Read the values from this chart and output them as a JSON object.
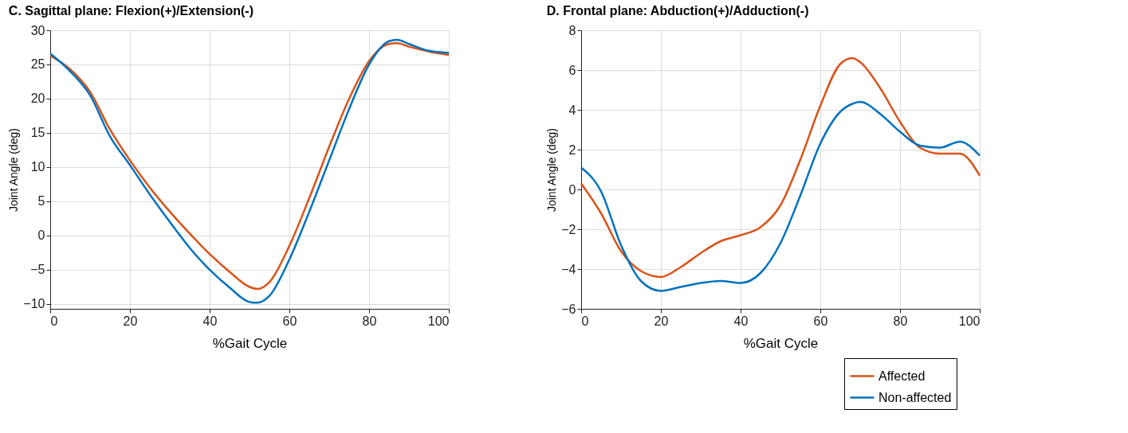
{
  "chart_data": [
    {
      "type": "line",
      "title": "C. Sagittal plane: Flexion(+)/Extension(-)",
      "xlabel": "%Gait Cycle",
      "ylabel": "Joint Angle (deg)",
      "xlim": [
        0,
        100
      ],
      "xticks": [
        0,
        20,
        40,
        60,
        80,
        100
      ],
      "ylim": [
        -10.7,
        30
      ],
      "yticks": [
        -10,
        -5,
        0,
        5,
        10,
        15,
        20,
        25,
        30
      ],
      "grid": true,
      "marker": "none",
      "line_style": "solid",
      "x": [
        0,
        5,
        10,
        15,
        20,
        25,
        30,
        35,
        40,
        45,
        50,
        52,
        55,
        60,
        65,
        70,
        75,
        80,
        85,
        87,
        90,
        95,
        100
      ],
      "series": [
        {
          "color": "#d95319",
          "values": [
            26.3,
            24.3,
            21,
            15.5,
            11,
            7,
            3.5,
            0.3,
            -2.7,
            -5.3,
            -7.5,
            -7.8,
            -6.8,
            -1.5,
            5.5,
            13,
            20,
            25.5,
            28,
            28.1,
            27.6,
            26.9,
            26.4
          ]
        },
        {
          "color": "#0072bd",
          "values": [
            26.6,
            24,
            20.5,
            14.5,
            10.3,
            6,
            2,
            -1.8,
            -5,
            -7.6,
            -9.7,
            -9.8,
            -8.8,
            -3.5,
            3.5,
            11,
            18.5,
            25,
            28.4,
            28.6,
            28,
            27,
            26.7
          ]
        }
      ]
    },
    {
      "type": "line",
      "title": "D. Frontal plane: Abduction(+)/Adduction(-)",
      "xlabel": "%Gait Cycle",
      "ylabel": "Joint Angle (deg)",
      "xlim": [
        0,
        100
      ],
      "xticks": [
        0,
        20,
        40,
        60,
        80,
        100
      ],
      "ylim": [
        -6,
        8
      ],
      "yticks": [
        -6,
        -4,
        -2,
        0,
        2,
        4,
        6,
        8
      ],
      "grid": true,
      "legend": "bottom right",
      "marker": "none",
      "line_style": "solid",
      "x": [
        0,
        5,
        10,
        15,
        20,
        25,
        30,
        35,
        40,
        45,
        50,
        55,
        60,
        65,
        68,
        70,
        75,
        80,
        85,
        90,
        95,
        100
      ],
      "series": [
        {
          "name": "Affected",
          "color": "#d95319",
          "values": [
            0.3,
            -1.2,
            -3.1,
            -4.1,
            -4.4,
            -3.9,
            -3.2,
            -2.6,
            -2.3,
            -1.9,
            -0.8,
            1.5,
            4.2,
            6.3,
            6.6,
            6.4,
            5.1,
            3.4,
            2.1,
            1.8,
            1.8,
            0.7
          ]
        },
        {
          "name": "Non-affected",
          "color": "#0072bd",
          "values": [
            1.1,
            -0.1,
            -2.8,
            -4.6,
            -5.1,
            -4.9,
            -4.7,
            -4.6,
            -4.7,
            -4.2,
            -2.7,
            -0.3,
            2.3,
            3.9,
            4.3,
            4.4,
            3.8,
            2.9,
            2.2,
            2.1,
            2.4,
            1.7
          ]
        }
      ]
    }
  ]
}
